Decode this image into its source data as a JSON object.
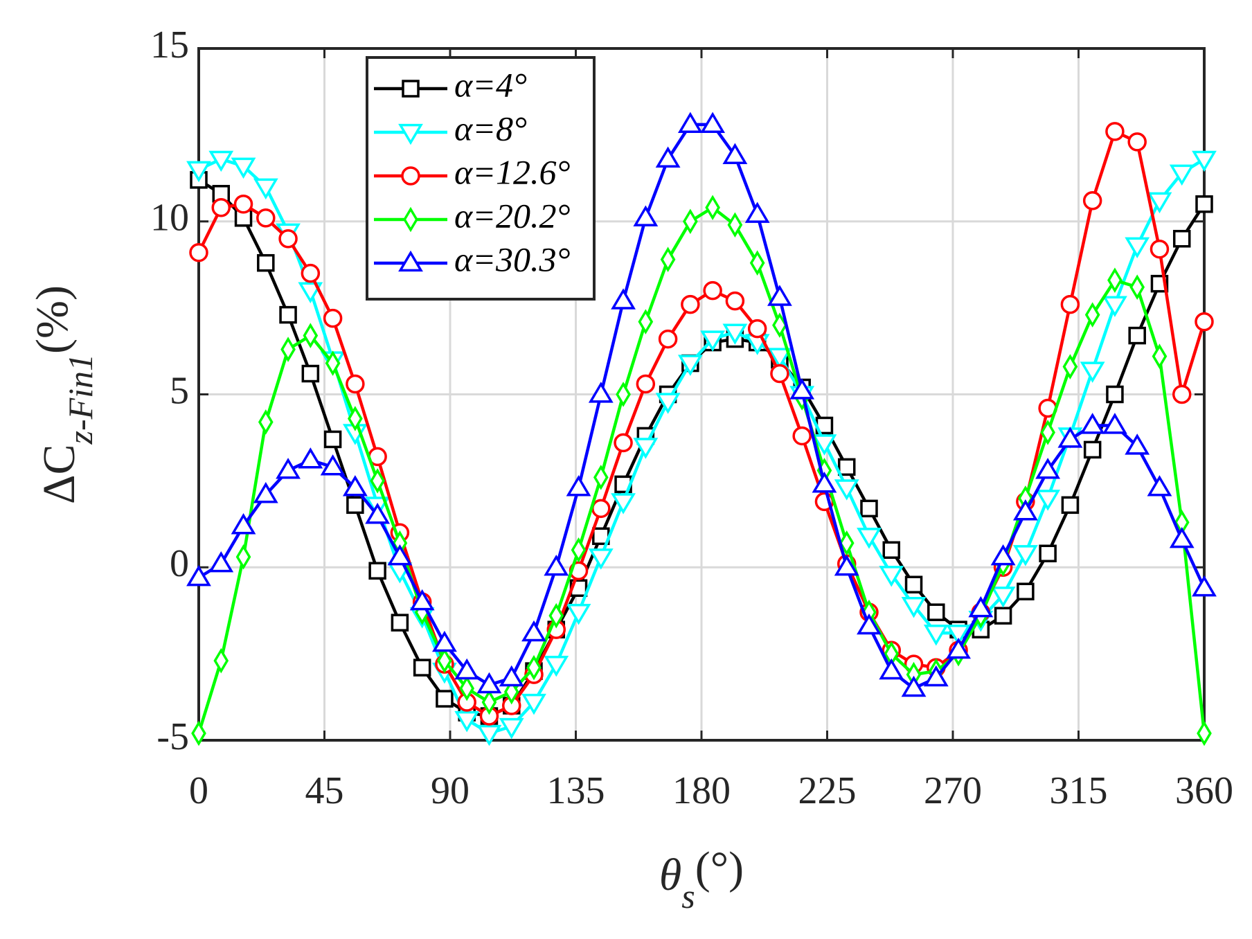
{
  "chart_data": {
    "type": "line",
    "xlabel": {
      "main": "θ",
      "sub": "s",
      "unit": "(°)"
    },
    "ylabel": {
      "main": "ΔC",
      "sub": "z-Fin1",
      "unit": "(%)"
    },
    "x": [
      0,
      8,
      16,
      24,
      32,
      40,
      48,
      56,
      64,
      72,
      80,
      88,
      96,
      104,
      112,
      120,
      128,
      136,
      144,
      152,
      160,
      168,
      176,
      184,
      192,
      200,
      208,
      216,
      224,
      232,
      240,
      248,
      256,
      264,
      272,
      280,
      288,
      296,
      304,
      312,
      320,
      328,
      336,
      344,
      352,
      360
    ],
    "xlim": [
      0,
      360
    ],
    "xticks": [
      0,
      45,
      90,
      135,
      180,
      225,
      270,
      315,
      360
    ],
    "ylim": [
      -5,
      15
    ],
    "yticks": [
      -5,
      0,
      5,
      10,
      15
    ],
    "grid": true,
    "legend": "upper left",
    "series": [
      {
        "name": "α=4°",
        "color": "#000000",
        "marker": "square",
        "values": [
          11.2,
          10.8,
          10.1,
          8.8,
          7.3,
          5.6,
          3.7,
          1.8,
          -0.1,
          -1.6,
          -2.9,
          -3.8,
          -4.2,
          -4.3,
          -4.0,
          -3.0,
          -1.8,
          -0.6,
          0.9,
          2.4,
          3.8,
          5.0,
          5.9,
          6.5,
          6.6,
          6.5,
          6.0,
          5.2,
          4.1,
          2.9,
          1.7,
          0.5,
          -0.5,
          -1.3,
          -1.8,
          -1.8,
          -1.4,
          -0.7,
          0.4,
          1.8,
          3.4,
          5.0,
          6.7,
          8.2,
          9.5,
          10.5
        ]
      },
      {
        "name": "α=8°",
        "color": "#00ffff",
        "marker": "triangle-down",
        "values": [
          11.5,
          11.8,
          11.6,
          11.0,
          9.7,
          8.0,
          6.0,
          3.9,
          1.8,
          -0.1,
          -1.4,
          -3.0,
          -4.4,
          -4.8,
          -4.6,
          -3.9,
          -2.8,
          -1.3,
          0.3,
          1.9,
          3.5,
          4.8,
          5.9,
          6.6,
          6.8,
          6.5,
          6.1,
          5.0,
          3.6,
          2.3,
          0.9,
          -0.2,
          -1.1,
          -1.9,
          -1.9,
          -1.5,
          -0.8,
          0.4,
          2.0,
          3.8,
          5.7,
          7.6,
          9.3,
          10.6,
          11.4,
          11.8
        ]
      },
      {
        "name": "α=12.6°",
        "color": "#ff0000",
        "marker": "circle",
        "values": [
          9.1,
          10.4,
          10.5,
          10.1,
          9.5,
          8.5,
          7.2,
          5.3,
          3.2,
          1.0,
          -1.0,
          -2.8,
          -3.9,
          -4.3,
          -4.0,
          -3.1,
          -1.8,
          -0.1,
          1.7,
          3.6,
          5.3,
          6.6,
          7.6,
          8.0,
          7.7,
          6.9,
          5.6,
          3.8,
          1.9,
          0.1,
          -1.3,
          -2.4,
          -2.8,
          -2.9,
          -2.4,
          -1.3,
          0.0,
          1.9,
          4.6,
          7.6,
          10.6,
          12.6,
          12.3,
          9.2,
          5.0,
          7.1
        ]
      },
      {
        "name": "α=20.2°",
        "color": "#00ff00",
        "marker": "diamond",
        "values": [
          -4.8,
          -2.7,
          0.3,
          4.2,
          6.3,
          6.7,
          5.9,
          4.3,
          2.5,
          0.7,
          -1.3,
          -2.7,
          -3.5,
          -3.9,
          -3.6,
          -2.9,
          -1.4,
          0.5,
          2.6,
          5.0,
          7.1,
          8.9,
          10.0,
          10.4,
          9.9,
          8.8,
          7.0,
          4.9,
          2.8,
          0.7,
          -1.3,
          -2.5,
          -3.1,
          -3.0,
          -2.5,
          -1.4,
          0.1,
          2.0,
          3.9,
          5.8,
          7.3,
          8.3,
          8.1,
          6.1,
          1.3,
          -4.8
        ]
      },
      {
        "name": "α=30.3°",
        "color": "#0000ff",
        "marker": "triangle-up",
        "values": [
          -0.3,
          0.1,
          1.2,
          2.1,
          2.8,
          3.1,
          2.9,
          2.3,
          1.5,
          0.3,
          -1.0,
          -2.2,
          -3.0,
          -3.4,
          -3.2,
          -1.9,
          0.0,
          2.3,
          5.0,
          7.7,
          10.1,
          11.8,
          12.8,
          12.8,
          11.9,
          10.2,
          7.8,
          5.1,
          2.4,
          0.0,
          -1.7,
          -3.0,
          -3.5,
          -3.2,
          -2.4,
          -1.2,
          0.3,
          1.6,
          2.8,
          3.7,
          4.1,
          4.1,
          3.5,
          2.3,
          0.8,
          -0.6
        ]
      }
    ]
  }
}
